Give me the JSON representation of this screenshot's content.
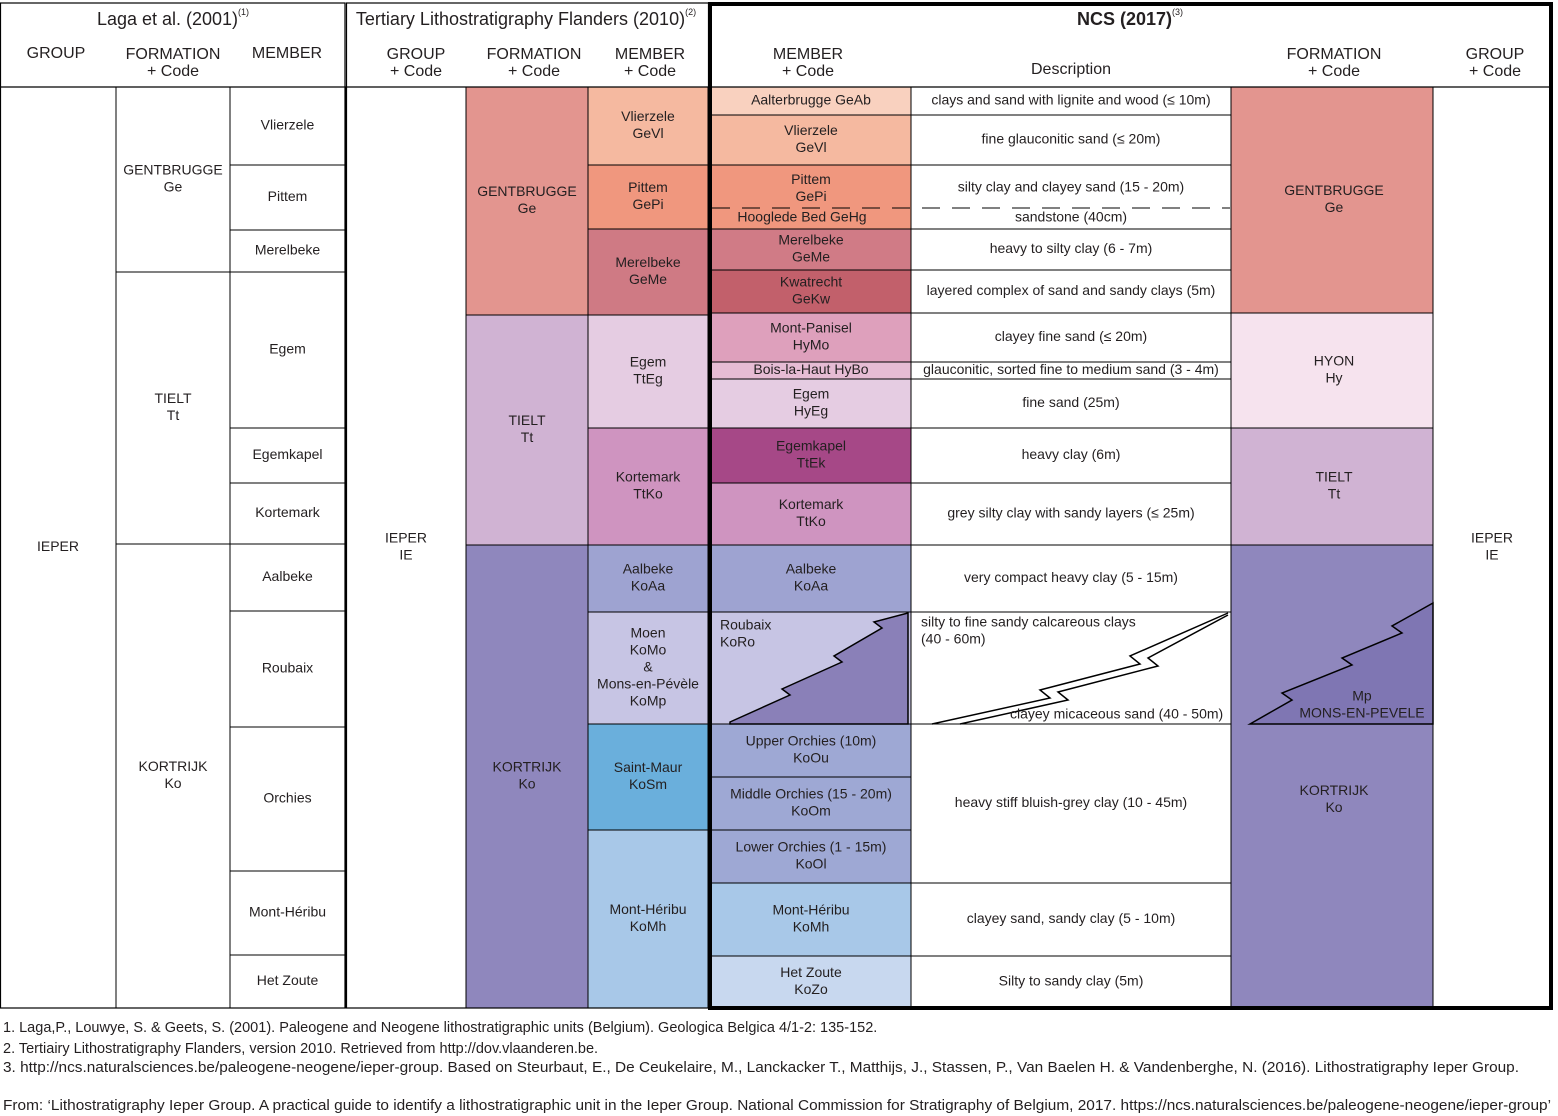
{
  "laga": {
    "title": "Laga et al. (2001)",
    "ref": "(1)",
    "headers": [
      [
        "GROUP"
      ],
      [
        "FORMATION",
        "+ Code"
      ],
      [
        "MEMBER"
      ]
    ],
    "group": [
      "IEPER"
    ],
    "formations": [
      [
        "GENTBRUGGE",
        "Ge"
      ],
      [
        "TIELT",
        "Tt"
      ],
      [
        "KORTRIJK",
        "Ko"
      ]
    ],
    "members": [
      [
        "Vlierzele"
      ],
      [
        "Pittem"
      ],
      [
        "Merelbeke"
      ],
      [
        "Egem"
      ],
      [
        "Egemkapel"
      ],
      [
        "Kortemark"
      ],
      [
        "Aalbeke"
      ],
      [
        "Roubaix"
      ],
      [
        "Orchies"
      ],
      [
        "Mont-Héribu"
      ],
      [
        "Het Zoute"
      ]
    ]
  },
  "tlf": {
    "title": "Tertiary Lithostratigraphy Flanders (2010)",
    "ref": "(2)",
    "headers": [
      [
        "GROUP",
        "+ Code"
      ],
      [
        "FORMATION",
        "+ Code"
      ],
      [
        "MEMBER",
        "+ Code"
      ]
    ],
    "group": [
      "IEPER",
      "IE"
    ],
    "formations": [
      [
        "GENTBRUGGE",
        "Ge"
      ],
      [
        "TIELT",
        "Tt"
      ],
      [
        "KORTRIJK",
        "Ko"
      ]
    ],
    "members": [
      [
        "Vlierzele",
        "GeVl"
      ],
      [
        "Pittem",
        "GePi"
      ],
      [
        "Merelbeke",
        "GeMe"
      ],
      [
        "Egem",
        "TtEg"
      ],
      [
        "Kortemark",
        "TtKo"
      ],
      [
        "Aalbeke",
        "KoAa"
      ],
      [
        "Moen",
        "KoMo",
        "&",
        "Mons-en-Pévèle",
        "KoMp"
      ],
      [
        "Saint-Maur",
        "KoSm"
      ],
      [
        "Mont-Héribu",
        "KoMh"
      ]
    ]
  },
  "ncs": {
    "title": "NCS (2017)",
    "ref": "(3)",
    "headers": [
      [
        "MEMBER",
        "+ Code"
      ],
      [
        "Description"
      ],
      [
        "FORMATION",
        "+ Code"
      ],
      [
        "GROUP",
        "+ Code"
      ]
    ],
    "members": [
      [
        "Aalterbrugge GeAb"
      ],
      [
        "Vlierzele",
        "GeVl"
      ],
      [
        "Pittem",
        "GePi"
      ],
      [
        "Hooglede Bed  GeHg"
      ],
      [
        "Merelbeke",
        "GeMe"
      ],
      [
        "Kwatrecht",
        "GeKw"
      ],
      [
        "Mont-Panisel",
        "HyMo"
      ],
      [
        "Bois-la-Haut  HyBo"
      ],
      [
        "Egem",
        "HyEg"
      ],
      [
        "Egemkapel",
        "TtEk"
      ],
      [
        "Kortemark",
        "TtKo"
      ],
      [
        "Aalbeke",
        "KoAa"
      ],
      [
        "Roubaix",
        "KoRo"
      ],
      [
        "Upper Orchies (10m)",
        "KoOu"
      ],
      [
        "Middle Orchies (15 - 20m)",
        "KoOm"
      ],
      [
        "Lower Orchies (1 - 15m)",
        "KoOl"
      ],
      [
        "Mont-Héribu",
        "KoMh"
      ],
      [
        "Het Zoute",
        "KoZo"
      ]
    ],
    "descriptions": [
      [
        "clays and sand with lignite and wood  (≤ 10m)"
      ],
      [
        "fine glauconitic sand (≤ 20m)"
      ],
      [
        "silty clay and clayey sand (15 - 20m)"
      ],
      [
        "sandstone (40cm)"
      ],
      [
        "heavy to silty clay (6 - 7m)"
      ],
      [
        "layered complex of sand and sandy clays (5m)"
      ],
      [
        "clayey fine sand (≤ 20m)"
      ],
      [
        "glauconitic, sorted fine to medium sand  (3 - 4m)"
      ],
      [
        "fine sand (25m)"
      ],
      [
        "heavy clay (6m)"
      ],
      [
        "grey silty clay with sandy layers (≤ 25m)"
      ],
      [
        "very compact heavy clay  (5 - 15m)"
      ],
      [
        "silty to fine sandy calcareous clays",
        "(40 - 60m)"
      ],
      [
        "clayey micaceous sand (40 - 50m)"
      ],
      [
        "heavy stiff bluish-grey clay  (10 - 45m)"
      ],
      [
        "clayey sand, sandy clay  (5 - 10m)"
      ],
      [
        "Silty to sandy clay (5m)"
      ]
    ],
    "formations": [
      [
        "GENTBRUGGE",
        "Ge"
      ],
      [
        "HYON",
        "Hy"
      ],
      [
        "TIELT",
        "Tt"
      ],
      [
        "KORTRIJK",
        "Ko"
      ]
    ],
    "mp": [
      "Mp",
      "MONS-EN-PEVELE"
    ],
    "group": [
      "IEPER",
      "IE"
    ]
  },
  "footnotes": [
    "1. Laga,P., Louwye, S. & Geets, S. (2001). Paleogene and Neogene lithostratigraphic units (Belgium). Geologica Belgica 4/1-2: 135-152.",
    "2. Tertiairy Lithostratigraphy Flanders, version 2010. Retrieved from http://dov.vlaanderen.be.",
    "3. http://ncs.naturalsciences.be/paleogene-neogene/ieper-group. Based on Steurbaut, E., De Ceukelaire, M., Lanckacker T., Matthijs, J., Stassen, P., Van Baelen H. & Vandenberghe, N. (2016). Lithostratigraphy Ieper Group."
  ],
  "source": "From: ‘Lithostratigraphy Ieper Group. A practical guide to identify a lithostratigraphic unit in the Ieper Group. National Commission for Stratigraphy of Belgium, 2017. https://ncs.naturalsciences.be/paleogene-neogene/ieper-group’"
}
